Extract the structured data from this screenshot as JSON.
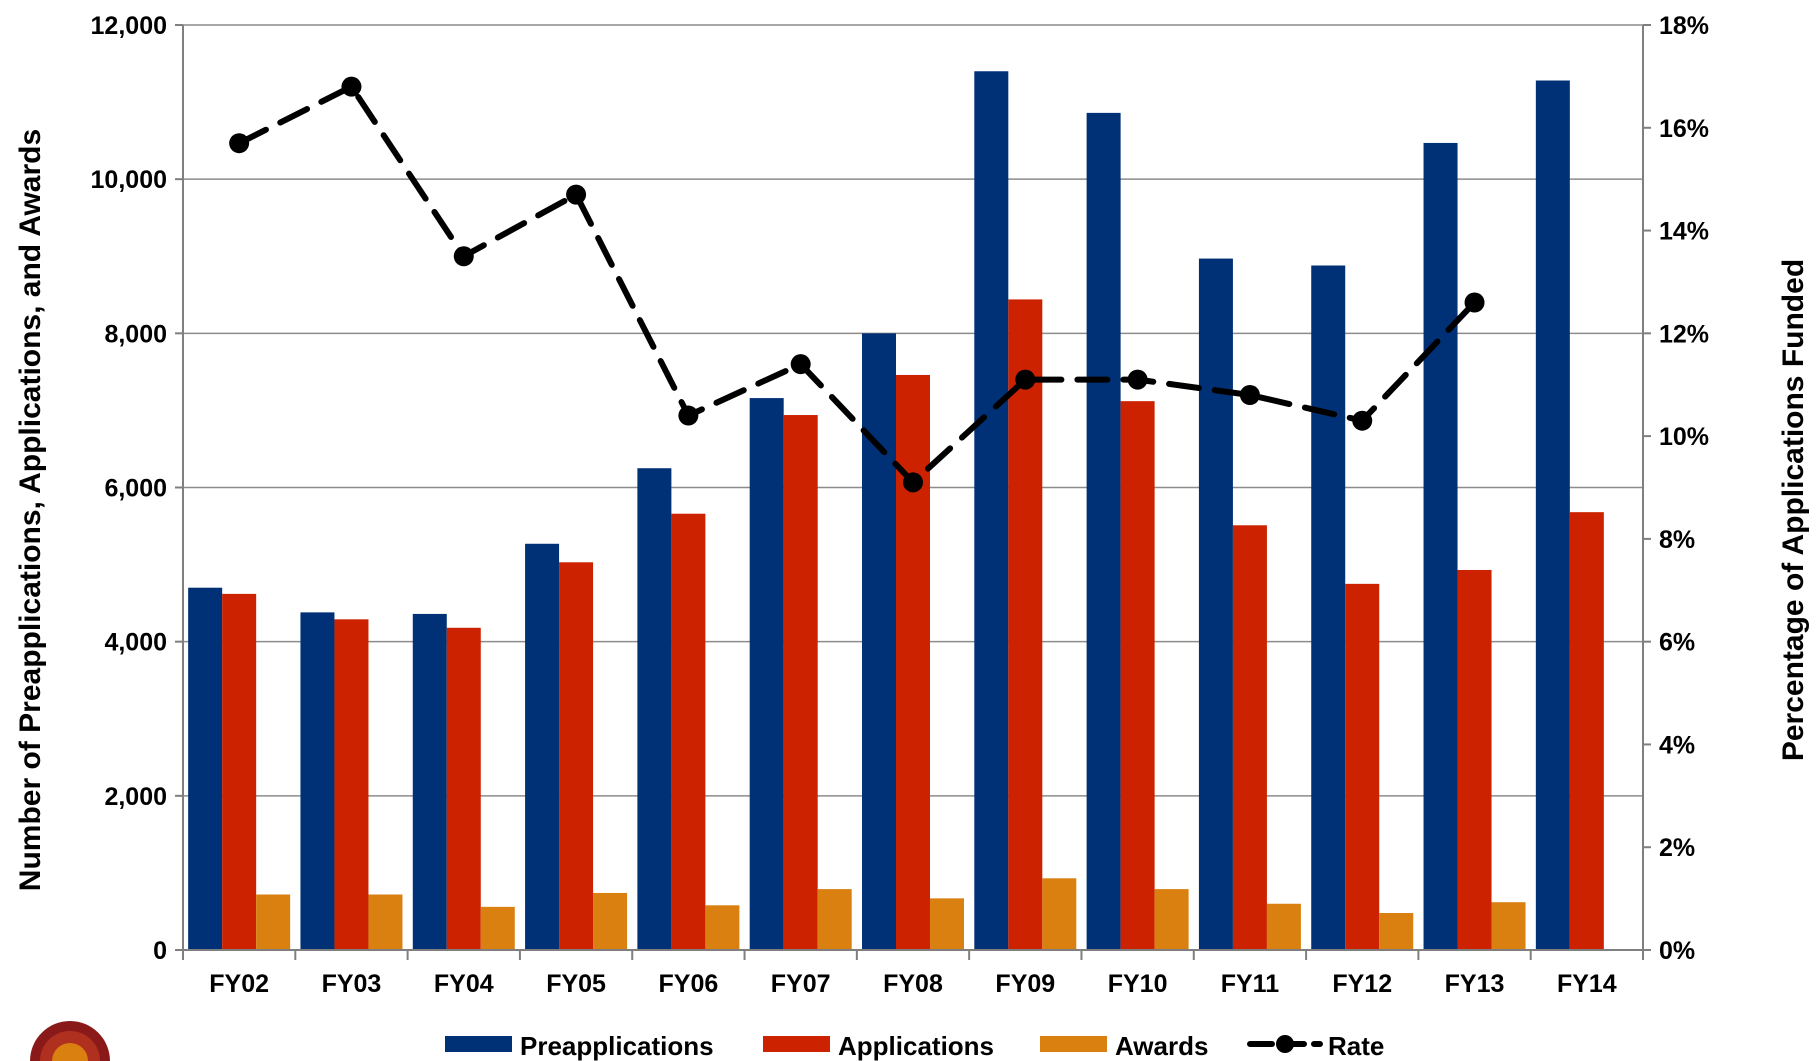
{
  "chart_data": {
    "type": "bar",
    "categories": [
      "FY02",
      "FY03",
      "FY04",
      "FY05",
      "FY06",
      "FY07",
      "FY08",
      "FY09",
      "FY10",
      "FY11",
      "FY12",
      "FY13",
      "FY14"
    ],
    "series": [
      {
        "name": "Preapplications",
        "type": "bar",
        "color": "#003075",
        "values": [
          4700,
          4380,
          4360,
          5270,
          6250,
          7160,
          8000,
          11400,
          10860,
          8970,
          8880,
          10470,
          11280
        ]
      },
      {
        "name": "Applications",
        "type": "bar",
        "color": "#cc2200",
        "values": [
          4620,
          4290,
          4180,
          5030,
          5660,
          6940,
          7460,
          8440,
          7120,
          5510,
          4750,
          4930,
          5680
        ]
      },
      {
        "name": "Awards",
        "type": "bar",
        "color": "#d98010",
        "values": [
          720,
          720,
          560,
          740,
          580,
          790,
          670,
          930,
          790,
          600,
          480,
          620,
          null
        ]
      },
      {
        "name": "Rate",
        "type": "line",
        "axis": "right",
        "color": "#000000",
        "values": [
          15.7,
          16.8,
          13.5,
          14.7,
          10.4,
          11.4,
          9.1,
          11.1,
          11.1,
          10.8,
          10.3,
          12.6,
          null
        ]
      }
    ],
    "ylabel": "Number of Preapplications, Applications, and Awards",
    "y2label": "Percentage of Applications Funded",
    "ylim": [
      0,
      12000
    ],
    "y2lim": [
      0,
      18
    ],
    "yticks": [
      "0",
      "2,000",
      "4,000",
      "6,000",
      "8,000",
      "10,000",
      "12,000"
    ],
    "y2ticks": [
      "0%",
      "2%",
      "4%",
      "6%",
      "8%",
      "10%",
      "12%",
      "14%",
      "16%",
      "18%"
    ],
    "grid": true,
    "legend_position": "bottom"
  }
}
